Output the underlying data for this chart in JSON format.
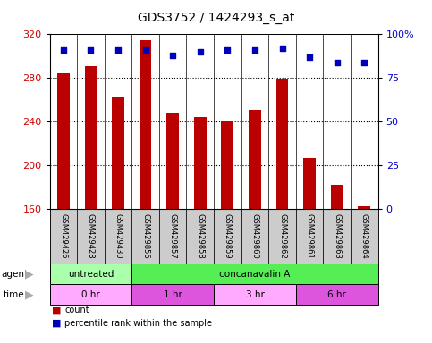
{
  "title": "GDS3752 / 1424293_s_at",
  "samples": [
    "GSM429426",
    "GSM429428",
    "GSM429430",
    "GSM429856",
    "GSM429857",
    "GSM429858",
    "GSM429859",
    "GSM429860",
    "GSM429862",
    "GSM429861",
    "GSM429863",
    "GSM429864"
  ],
  "bar_values": [
    284,
    291,
    262,
    315,
    248,
    244,
    241,
    251,
    279,
    206,
    182,
    162
  ],
  "percentile_values": [
    91,
    91,
    91,
    91,
    88,
    90,
    91,
    91,
    92,
    87,
    84,
    84
  ],
  "ylim_left": [
    160,
    320
  ],
  "ylim_right": [
    0,
    100
  ],
  "yticks_left": [
    160,
    200,
    240,
    280,
    320
  ],
  "yticks_right": [
    0,
    25,
    50,
    75,
    100
  ],
  "ytick_right_labels": [
    "0",
    "25",
    "50",
    "75",
    "100%"
  ],
  "bar_color": "#bb0000",
  "dot_color": "#0000bb",
  "bar_bottom": 160,
  "bar_width": 0.45,
  "agent_row": [
    {
      "label": "untreated",
      "start": 0,
      "end": 3,
      "color": "#aaffaa"
    },
    {
      "label": "concanavalin A",
      "start": 3,
      "end": 12,
      "color": "#55ee55"
    }
  ],
  "time_row": [
    {
      "label": "0 hr",
      "start": 0,
      "end": 3,
      "color": "#ffaaff"
    },
    {
      "label": "1 hr",
      "start": 3,
      "end": 6,
      "color": "#dd55dd"
    },
    {
      "label": "3 hr",
      "start": 6,
      "end": 9,
      "color": "#ffaaff"
    },
    {
      "label": "6 hr",
      "start": 9,
      "end": 12,
      "color": "#dd55dd"
    }
  ],
  "legend_items": [
    {
      "label": "count",
      "color": "#bb0000"
    },
    {
      "label": "percentile rank within the sample",
      "color": "#0000bb"
    }
  ],
  "dotted_lines": [
    200,
    240,
    280
  ],
  "tick_color_left": "#cc0000",
  "tick_color_right": "#0000cc",
  "bg_color": "#ffffff",
  "sample_box_color": "#cccccc",
  "arrow_color": "#aaaaaa",
  "tick_fontsize": 8,
  "label_fontsize": 7,
  "sample_fontsize": 6,
  "title_fontsize": 10
}
